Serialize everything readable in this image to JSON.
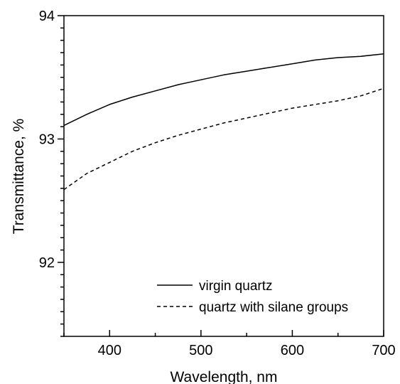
{
  "chart_data": {
    "type": "line",
    "title": "",
    "xlabel": "Wavelength, nm",
    "ylabel": "Transmittance, %",
    "xlim": [
      350,
      700
    ],
    "ylim": [
      91.4,
      94
    ],
    "x_ticks": [
      400,
      500,
      600,
      700
    ],
    "y_ticks": [
      92,
      93,
      94
    ],
    "x_tick_labels": [
      "400",
      "500",
      "600",
      "700"
    ],
    "y_tick_labels": [
      "92",
      "93",
      "94"
    ],
    "x_minor_step": 50,
    "y_minor_step": 0.1,
    "grid": false,
    "legend_position": "bottom-right",
    "series": [
      {
        "name": "virgin quartz",
        "line_style": "solid",
        "color": "#000000",
        "x": [
          350,
          375,
          400,
          425,
          450,
          475,
          500,
          525,
          550,
          575,
          600,
          625,
          650,
          675,
          700
        ],
        "y": [
          93.11,
          93.2,
          93.28,
          93.34,
          93.39,
          93.44,
          93.48,
          93.52,
          93.55,
          93.58,
          93.61,
          93.64,
          93.66,
          93.67,
          93.69
        ]
      },
      {
        "name": "quartz with silane groups",
        "line_style": "dashed",
        "color": "#000000",
        "x": [
          350,
          375,
          400,
          425,
          450,
          475,
          500,
          525,
          550,
          575,
          600,
          625,
          650,
          675,
          700
        ],
        "y": [
          92.59,
          92.72,
          92.81,
          92.9,
          92.97,
          93.03,
          93.08,
          93.13,
          93.17,
          93.21,
          93.25,
          93.28,
          93.31,
          93.35,
          93.41
        ]
      }
    ]
  }
}
